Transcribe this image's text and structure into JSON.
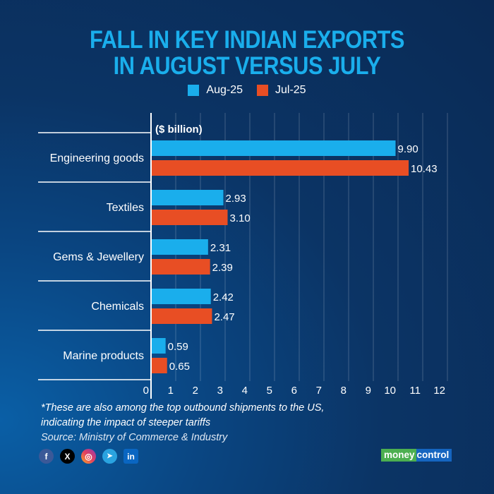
{
  "chart_data": {
    "type": "bar",
    "orientation": "horizontal",
    "title": "FALL IN KEY INDIAN EXPORTS IN AUGUST VERSUS JULY",
    "title_lines": [
      "FALL IN KEY INDIAN EXPORTS",
      "IN AUGUST VERSUS JULY"
    ],
    "unit_label": "($ billion)",
    "categories": [
      "Engineering goods",
      "Textiles",
      "Gems & Jewellery",
      "Chemicals",
      "Marine products"
    ],
    "series": [
      {
        "name": "Aug-25",
        "color": "#1aaeec",
        "values": [
          9.9,
          2.93,
          2.31,
          2.42,
          0.59
        ],
        "labels": [
          "9.90",
          "2.93",
          "2.31",
          "2.42",
          "0.59"
        ]
      },
      {
        "name": "Jul-25",
        "color": "#e84e24",
        "values": [
          10.43,
          3.1,
          2.39,
          2.47,
          0.65
        ],
        "labels": [
          "10.43",
          "3.10",
          "2.39",
          "2.47",
          "0.65"
        ]
      }
    ],
    "xlim": [
      0,
      12
    ],
    "xticks": [
      0,
      1,
      2,
      3,
      4,
      5,
      6,
      7,
      8,
      9,
      10,
      11,
      12
    ],
    "grid": true,
    "legend_position": "top-center"
  },
  "footer": {
    "note_line1": "*These are also among the top outbound shipments to the US,",
    "note_line2": "indicating the impact of steeper tariffs",
    "source": "Source: Ministry of Commerce & Industry"
  },
  "social": [
    {
      "name": "facebook",
      "glyph": "f",
      "color": "#3b5998"
    },
    {
      "name": "x",
      "glyph": "X",
      "color": "#000000"
    },
    {
      "name": "instagram",
      "glyph": "◎",
      "color": "#e4405f"
    },
    {
      "name": "telegram",
      "glyph": "➤",
      "color": "#2aa3e0"
    },
    {
      "name": "linkedin",
      "glyph": "in",
      "color": "#0a66c2"
    }
  ],
  "brand": {
    "part1": "money",
    "part2": "control"
  }
}
